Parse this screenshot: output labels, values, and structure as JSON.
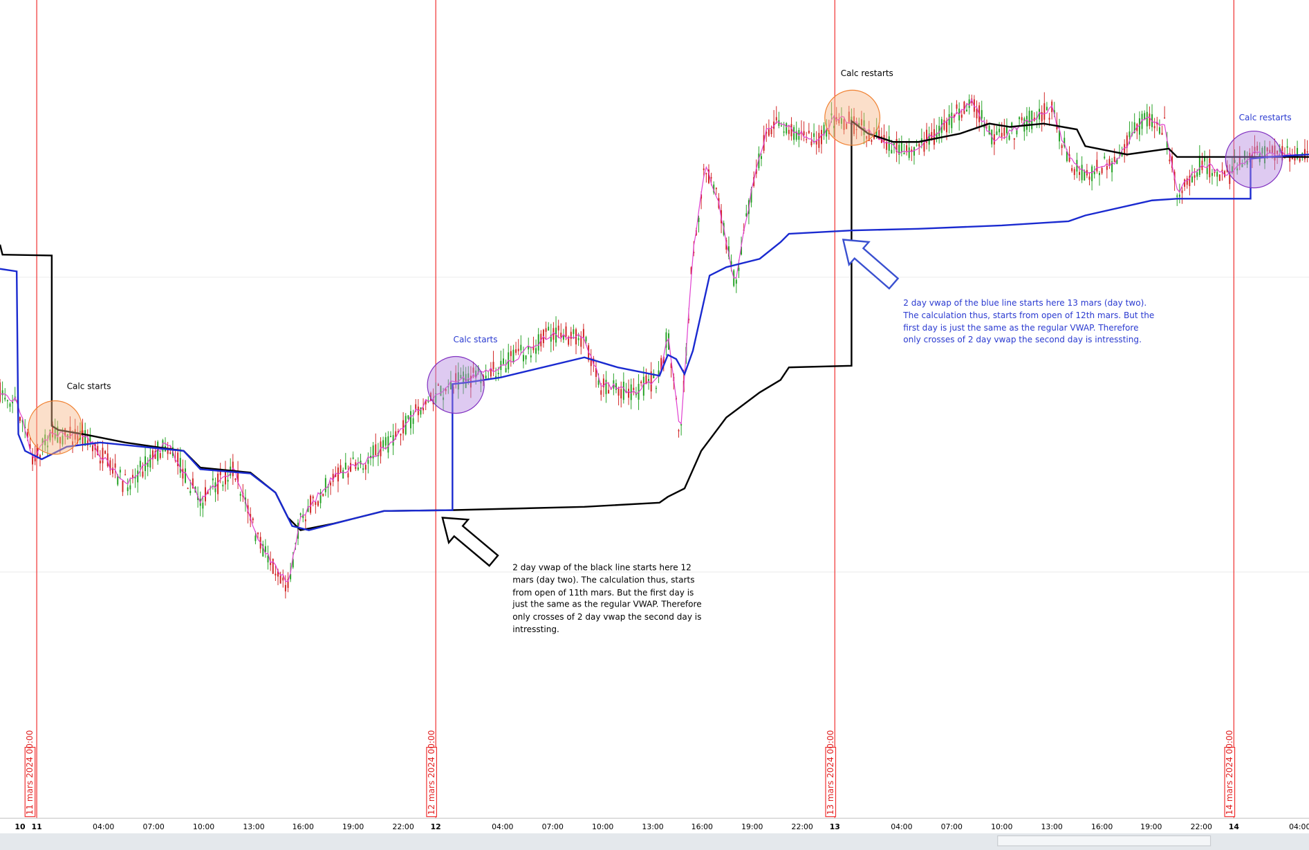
{
  "x_axis": {
    "labels": [
      "10",
      "11",
      "04:00",
      "07:00",
      "10:00",
      "13:00",
      "16:00",
      "19:00",
      "22:00",
      "12",
      "04:00",
      "07:00",
      "10:00",
      "13:00",
      "16:00",
      "19:00",
      "22:00",
      "13",
      "04:00",
      "07:00",
      "10:00",
      "13:00",
      "16:00",
      "19:00",
      "22:00",
      "14",
      "04:00"
    ]
  },
  "date_markers": [
    "11 mars 2024 00:00",
    "12 mars 2024 00:00",
    "13 mars 2024 00:00",
    "14 mars 2024 00:00"
  ],
  "annotations": {
    "calc_starts_black": "Calc starts",
    "calc_starts_blue": "Calc starts",
    "calc_restarts_black": "Calc restarts",
    "calc_restarts_blue": "Calc restarts",
    "black_note": [
      "2 day vwap of the black line starts here 12",
      "mars (day two). The calculation thus, starts",
      "from open of 11th mars. But the first day is",
      "just the same as the regular VWAP. Therefore",
      "only crosses of 2 day vwap the second day is",
      "intressting."
    ],
    "blue_note": [
      "2 day vwap of the blue line starts here 13 mars (day two).",
      "The calculation thus, starts from open of 12th mars. But the",
      "first day is just the same as the regular VWAP. Therefore",
      "only crosses of 2 day vwap the second day is intressting."
    ]
  }
}
